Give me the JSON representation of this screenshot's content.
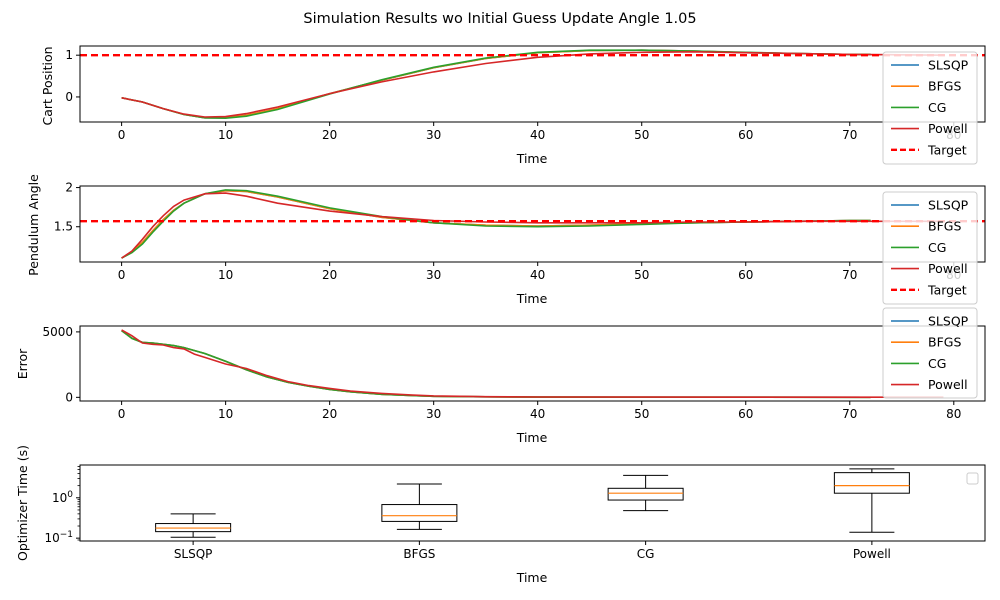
{
  "figure": {
    "suptitle": "Simulation Results wo Initial Guess Update Angle 1.05"
  },
  "colors": {
    "SLSQP": "#1f77b4",
    "BFGS": "#ff7f0e",
    "CG": "#2ca02c",
    "Powell": "#d62728",
    "Target": "#ff0000",
    "median": "#ff7f0e"
  },
  "chart_data": [
    {
      "type": "line",
      "xlabel": "Time",
      "ylabel": "Cart Position",
      "xlim": [
        -4,
        83
      ],
      "ylim": [
        -0.6,
        1.22
      ],
      "xticks": [
        0,
        10,
        20,
        30,
        40,
        50,
        60,
        70,
        80
      ],
      "yticks": [
        0,
        1
      ],
      "legend": {
        "placement": "right",
        "entries": [
          "SLSQP",
          "BFGS",
          "CG",
          "Powell",
          "Target"
        ]
      },
      "target": {
        "name": "Target",
        "value": 1.0,
        "style": "dashed"
      },
      "series": [
        {
          "name": "SLSQP",
          "x": [
            0,
            2,
            4,
            6,
            8,
            10,
            12,
            15,
            20,
            25,
            30,
            35,
            40,
            45,
            50,
            55,
            60,
            65,
            70,
            72
          ],
          "y": [
            -0.02,
            -0.12,
            -0.28,
            -0.42,
            -0.5,
            -0.5,
            -0.44,
            -0.28,
            0.08,
            0.4,
            0.7,
            0.92,
            1.06,
            1.11,
            1.12,
            1.1,
            1.06,
            1.04,
            1.02,
            1.02
          ]
        },
        {
          "name": "BFGS",
          "x": [
            0,
            2,
            4,
            6,
            8,
            10,
            12,
            15,
            20,
            25,
            30,
            35,
            40,
            45,
            50,
            55,
            60,
            65,
            70,
            72
          ],
          "y": [
            -0.02,
            -0.12,
            -0.28,
            -0.42,
            -0.5,
            -0.5,
            -0.44,
            -0.28,
            0.08,
            0.4,
            0.7,
            0.92,
            1.06,
            1.11,
            1.12,
            1.1,
            1.06,
            1.04,
            1.02,
            1.02
          ]
        },
        {
          "name": "CG",
          "x": [
            0,
            2,
            4,
            6,
            8,
            10,
            12,
            15,
            20,
            25,
            30,
            35,
            40,
            45,
            50,
            55,
            60,
            65,
            70,
            72
          ],
          "y": [
            -0.02,
            -0.12,
            -0.28,
            -0.42,
            -0.5,
            -0.51,
            -0.46,
            -0.3,
            0.07,
            0.41,
            0.71,
            0.93,
            1.07,
            1.12,
            1.12,
            1.1,
            1.07,
            1.04,
            1.02,
            1.02
          ]
        },
        {
          "name": "Powell",
          "x": [
            0,
            2,
            4,
            6,
            8,
            10,
            12,
            15,
            20,
            25,
            30,
            35,
            40,
            45,
            50,
            55,
            60,
            65,
            70,
            75,
            79
          ],
          "y": [
            -0.02,
            -0.12,
            -0.28,
            -0.41,
            -0.48,
            -0.47,
            -0.4,
            -0.24,
            0.08,
            0.36,
            0.6,
            0.8,
            0.95,
            1.03,
            1.07,
            1.08,
            1.06,
            1.04,
            1.02,
            1.01,
            1.0
          ]
        }
      ]
    },
    {
      "type": "line",
      "xlabel": "Time",
      "ylabel": "Pendulum Angle",
      "xlim": [
        -4,
        83
      ],
      "ylim": [
        1.05,
        2.02
      ],
      "xticks": [
        0,
        10,
        20,
        30,
        40,
        50,
        60,
        70,
        80
      ],
      "yticks": [
        1.5,
        2.0
      ],
      "legend": {
        "placement": "right",
        "entries": [
          "SLSQP",
          "BFGS",
          "CG",
          "Powell",
          "Target"
        ]
      },
      "target": {
        "name": "Target",
        "value": 1.5708,
        "style": "dashed"
      },
      "series": [
        {
          "name": "SLSQP",
          "x": [
            0,
            1,
            2,
            3,
            4,
            5,
            6,
            8,
            10,
            12,
            15,
            20,
            25,
            30,
            35,
            40,
            45,
            50,
            55,
            60,
            65,
            70,
            72
          ],
          "y": [
            1.1,
            1.18,
            1.3,
            1.45,
            1.59,
            1.71,
            1.8,
            1.92,
            1.96,
            1.95,
            1.88,
            1.73,
            1.62,
            1.55,
            1.52,
            1.51,
            1.52,
            1.54,
            1.55,
            1.56,
            1.57,
            1.58,
            1.58
          ]
        },
        {
          "name": "BFGS",
          "x": [
            0,
            1,
            2,
            3,
            4,
            5,
            6,
            8,
            10,
            12,
            15,
            20,
            25,
            30,
            35,
            40,
            45,
            50,
            55,
            60,
            65,
            70,
            72
          ],
          "y": [
            1.1,
            1.18,
            1.3,
            1.45,
            1.59,
            1.71,
            1.8,
            1.92,
            1.96,
            1.95,
            1.88,
            1.73,
            1.62,
            1.55,
            1.52,
            1.51,
            1.52,
            1.54,
            1.55,
            1.56,
            1.57,
            1.58,
            1.58
          ]
        },
        {
          "name": "CG",
          "x": [
            0,
            1,
            2,
            3,
            4,
            5,
            6,
            8,
            10,
            12,
            15,
            20,
            25,
            30,
            35,
            40,
            45,
            50,
            55,
            60,
            65,
            70,
            72
          ],
          "y": [
            1.1,
            1.17,
            1.28,
            1.43,
            1.57,
            1.7,
            1.8,
            1.92,
            1.97,
            1.96,
            1.89,
            1.74,
            1.63,
            1.55,
            1.51,
            1.5,
            1.51,
            1.53,
            1.55,
            1.56,
            1.57,
            1.58,
            1.58
          ]
        },
        {
          "name": "Powell",
          "x": [
            0,
            1,
            2,
            3,
            4,
            5,
            6,
            8,
            10,
            12,
            15,
            20,
            25,
            30,
            35,
            40,
            45,
            50,
            55,
            60,
            65,
            70,
            75,
            79
          ],
          "y": [
            1.1,
            1.19,
            1.34,
            1.5,
            1.64,
            1.76,
            1.84,
            1.92,
            1.93,
            1.89,
            1.8,
            1.7,
            1.63,
            1.58,
            1.56,
            1.55,
            1.55,
            1.55,
            1.56,
            1.56,
            1.57,
            1.57,
            1.57,
            1.57
          ]
        }
      ]
    },
    {
      "type": "line",
      "xlabel": "Time",
      "ylabel": "Error",
      "xlim": [
        -4,
        83
      ],
      "ylim": [
        -280,
        5450
      ],
      "xticks": [
        0,
        10,
        20,
        30,
        40,
        50,
        60,
        70,
        80
      ],
      "yticks": [
        0,
        5000
      ],
      "legend": {
        "placement": "right",
        "entries": [
          "SLSQP",
          "BFGS",
          "CG",
          "Powell"
        ]
      },
      "series": [
        {
          "name": "SLSQP",
          "x": [
            0,
            1,
            2,
            3,
            4,
            5,
            6,
            8,
            10,
            12,
            14,
            16,
            18,
            20,
            22,
            25,
            28,
            30,
            35,
            40,
            50,
            60,
            72
          ],
          "y": [
            5100,
            4500,
            4200,
            4150,
            4050,
            3950,
            3800,
            3350,
            2750,
            2100,
            1550,
            1150,
            850,
            600,
            420,
            230,
            130,
            80,
            40,
            20,
            12,
            8,
            6
          ]
        },
        {
          "name": "BFGS",
          "x": [
            0,
            1,
            2,
            3,
            4,
            5,
            6,
            8,
            10,
            12,
            14,
            16,
            18,
            20,
            22,
            25,
            28,
            30,
            35,
            40,
            50,
            60,
            72
          ],
          "y": [
            5100,
            4500,
            4200,
            4150,
            4050,
            3950,
            3800,
            3350,
            2750,
            2100,
            1550,
            1150,
            850,
            600,
            420,
            230,
            130,
            80,
            40,
            20,
            12,
            8,
            6
          ]
        },
        {
          "name": "CG",
          "x": [
            0,
            1,
            2,
            3,
            4,
            5,
            6,
            8,
            10,
            12,
            14,
            16,
            18,
            20,
            22,
            25,
            28,
            30,
            35,
            40,
            50,
            60,
            72
          ],
          "y": [
            5100,
            4500,
            4200,
            4150,
            4050,
            3950,
            3800,
            3350,
            2750,
            2100,
            1550,
            1150,
            850,
            600,
            420,
            230,
            130,
            80,
            40,
            20,
            12,
            8,
            6
          ]
        },
        {
          "name": "Powell",
          "x": [
            0,
            1,
            2,
            3,
            4,
            5,
            6,
            7,
            8,
            10,
            12,
            14,
            16,
            18,
            20,
            22,
            25,
            28,
            30,
            35,
            40,
            50,
            60,
            70,
            79
          ],
          "y": [
            5150,
            4700,
            4150,
            4050,
            4000,
            3800,
            3700,
            3300,
            3050,
            2550,
            2200,
            1650,
            1200,
            900,
            680,
            480,
            300,
            170,
            110,
            50,
            25,
            15,
            10,
            8,
            8
          ]
        }
      ]
    },
    {
      "type": "box",
      "xlabel": "Time",
      "ylabel": "Optimizer Time (s)",
      "yscale": "log",
      "ylim": [
        0.085,
        6.5
      ],
      "yticks": [
        "10^-1",
        "10^0"
      ],
      "categories": [
        "SLSQP",
        "BFGS",
        "CG",
        "Powell"
      ],
      "boxes": [
        {
          "name": "SLSQP",
          "whisker_low": 0.105,
          "q1": 0.145,
          "median": 0.178,
          "q3": 0.23,
          "whisker_high": 0.4
        },
        {
          "name": "BFGS",
          "whisker_low": 0.165,
          "q1": 0.26,
          "median": 0.36,
          "q3": 0.68,
          "whisker_high": 2.2
        },
        {
          "name": "CG",
          "whisker_low": 0.48,
          "q1": 0.88,
          "median": 1.3,
          "q3": 1.72,
          "whisker_high": 3.6
        },
        {
          "name": "Powell",
          "whisker_low": 0.14,
          "q1": 1.3,
          "median": 2.0,
          "q3": 4.2,
          "whisker_high": 5.2
        }
      ],
      "legend": {
        "placement": "top-right",
        "entries": []
      }
    }
  ]
}
